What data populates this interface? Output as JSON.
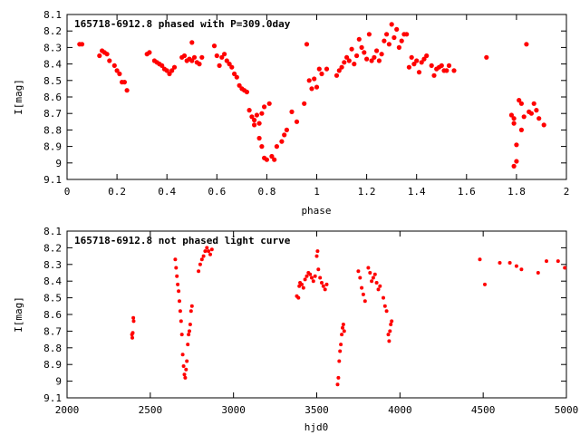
{
  "chart_data": [
    {
      "type": "scatter",
      "title": "165718-6912.8 phased with P=309.0day",
      "xlabel": "phase",
      "ylabel": "I[mag]",
      "xlim": [
        0,
        2
      ],
      "ylim": [
        9.1,
        8.1
      ],
      "y_inverted": true,
      "xticks": [
        "0",
        "0.2",
        "0.4",
        "0.6",
        "0.8",
        "1",
        "1.2",
        "1.4",
        "1.6",
        "1.8",
        "2"
      ],
      "yticks": [
        "8.1",
        "8.2",
        "8.3",
        "8.4",
        "8.5",
        "8.6",
        "8.7",
        "8.8",
        "8.9",
        "9",
        "9.1"
      ],
      "xtick_values": [
        0,
        0.2,
        0.4,
        0.6,
        0.8,
        1.0,
        1.2,
        1.4,
        1.6,
        1.8,
        2.0
      ],
      "ytick_values": [
        8.1,
        8.2,
        8.3,
        8.4,
        8.5,
        8.6,
        8.7,
        8.8,
        8.9,
        9.0,
        9.1
      ],
      "marker_color": "#ff0000",
      "grid": false,
      "points": [
        [
          0.05,
          8.28
        ],
        [
          0.06,
          8.28
        ],
        [
          0.13,
          8.35
        ],
        [
          0.14,
          8.32
        ],
        [
          0.15,
          8.33
        ],
        [
          0.16,
          8.34
        ],
        [
          0.17,
          8.38
        ],
        [
          0.19,
          8.41
        ],
        [
          0.2,
          8.44
        ],
        [
          0.21,
          8.46
        ],
        [
          0.22,
          8.51
        ],
        [
          0.23,
          8.51
        ],
        [
          0.24,
          8.56
        ],
        [
          0.32,
          8.34
        ],
        [
          0.33,
          8.33
        ],
        [
          0.35,
          8.38
        ],
        [
          0.36,
          8.39
        ],
        [
          0.37,
          8.4
        ],
        [
          0.38,
          8.41
        ],
        [
          0.39,
          8.43
        ],
        [
          0.4,
          8.44
        ],
        [
          0.41,
          8.46
        ],
        [
          0.42,
          8.44
        ],
        [
          0.43,
          8.42
        ],
        [
          0.46,
          8.36
        ],
        [
          0.47,
          8.35
        ],
        [
          0.48,
          8.38
        ],
        [
          0.49,
          8.37
        ],
        [
          0.5,
          8.27
        ],
        [
          0.5,
          8.38
        ],
        [
          0.51,
          8.36
        ],
        [
          0.52,
          8.39
        ],
        [
          0.53,
          8.4
        ],
        [
          0.54,
          8.36
        ],
        [
          0.59,
          8.29
        ],
        [
          0.6,
          8.35
        ],
        [
          0.61,
          8.41
        ],
        [
          0.62,
          8.36
        ],
        [
          0.63,
          8.34
        ],
        [
          0.64,
          8.38
        ],
        [
          0.65,
          8.4
        ],
        [
          0.66,
          8.42
        ],
        [
          0.67,
          8.46
        ],
        [
          0.68,
          8.48
        ],
        [
          0.69,
          8.53
        ],
        [
          0.7,
          8.55
        ],
        [
          0.71,
          8.56
        ],
        [
          0.72,
          8.57
        ],
        [
          0.73,
          8.68
        ],
        [
          0.74,
          8.72
        ],
        [
          0.75,
          8.74
        ],
        [
          0.76,
          8.71
        ],
        [
          0.77,
          8.85
        ],
        [
          0.78,
          8.9
        ],
        [
          0.79,
          8.97
        ],
        [
          0.8,
          8.98
        ],
        [
          0.82,
          8.96
        ],
        [
          0.83,
          8.98
        ],
        [
          0.75,
          8.77
        ],
        [
          0.77,
          8.76
        ],
        [
          0.78,
          8.7
        ],
        [
          0.79,
          8.66
        ],
        [
          0.81,
          8.64
        ],
        [
          0.84,
          8.9
        ],
        [
          0.86,
          8.87
        ],
        [
          0.87,
          8.83
        ],
        [
          0.88,
          8.8
        ],
        [
          0.9,
          8.69
        ],
        [
          0.92,
          8.75
        ],
        [
          0.95,
          8.64
        ],
        [
          0.96,
          8.28
        ],
        [
          0.97,
          8.5
        ],
        [
          0.98,
          8.55
        ],
        [
          0.99,
          8.49
        ],
        [
          1.0,
          8.54
        ],
        [
          1.01,
          8.43
        ],
        [
          1.02,
          8.46
        ],
        [
          1.04,
          8.43
        ],
        [
          1.08,
          8.47
        ],
        [
          1.09,
          8.44
        ],
        [
          1.1,
          8.42
        ],
        [
          1.11,
          8.39
        ],
        [
          1.12,
          8.36
        ],
        [
          1.13,
          8.38
        ],
        [
          1.14,
          8.31
        ],
        [
          1.15,
          8.4
        ],
        [
          1.16,
          8.35
        ],
        [
          1.17,
          8.25
        ],
        [
          1.18,
          8.3
        ],
        [
          1.19,
          8.33
        ],
        [
          1.2,
          8.37
        ],
        [
          1.21,
          8.22
        ],
        [
          1.22,
          8.38
        ],
        [
          1.23,
          8.36
        ],
        [
          1.24,
          8.32
        ],
        [
          1.25,
          8.38
        ],
        [
          1.26,
          8.34
        ],
        [
          1.27,
          8.26
        ],
        [
          1.28,
          8.22
        ],
        [
          1.29,
          8.28
        ],
        [
          1.3,
          8.16
        ],
        [
          1.31,
          8.24
        ],
        [
          1.32,
          8.19
        ],
        [
          1.33,
          8.3
        ],
        [
          1.34,
          8.26
        ],
        [
          1.35,
          8.22
        ],
        [
          1.36,
          8.22
        ],
        [
          1.37,
          8.42
        ],
        [
          1.38,
          8.36
        ],
        [
          1.39,
          8.4
        ],
        [
          1.4,
          8.38
        ],
        [
          1.41,
          8.45
        ],
        [
          1.42,
          8.39
        ],
        [
          1.43,
          8.37
        ],
        [
          1.44,
          8.35
        ],
        [
          1.46,
          8.41
        ],
        [
          1.47,
          8.47
        ],
        [
          1.48,
          8.43
        ],
        [
          1.49,
          8.42
        ],
        [
          1.5,
          8.41
        ],
        [
          1.51,
          8.44
        ],
        [
          1.52,
          8.44
        ],
        [
          1.53,
          8.41
        ],
        [
          1.55,
          8.44
        ],
        [
          1.68,
          8.36
        ],
        [
          1.78,
          8.71
        ],
        [
          1.79,
          8.73
        ],
        [
          1.79,
          8.76
        ],
        [
          1.79,
          9.02
        ],
        [
          1.8,
          8.99
        ],
        [
          1.8,
          8.89
        ],
        [
          1.81,
          8.62
        ],
        [
          1.82,
          8.64
        ],
        [
          1.82,
          8.8
        ],
        [
          1.83,
          8.72
        ],
        [
          1.84,
          8.28
        ],
        [
          1.85,
          8.69
        ],
        [
          1.86,
          8.7
        ],
        [
          1.87,
          8.64
        ],
        [
          1.88,
          8.68
        ],
        [
          1.89,
          8.73
        ],
        [
          1.91,
          8.77
        ]
      ]
    },
    {
      "type": "scatter",
      "title": "165718-6912.8 not phased light curve",
      "xlabel": "hjd0",
      "ylabel": "I[mag]",
      "xlim": [
        2000,
        5000
      ],
      "ylim": [
        9.1,
        8.1
      ],
      "y_inverted": true,
      "xticks": [
        "2000",
        "2500",
        "3000",
        "3500",
        "4000",
        "4500",
        "5000"
      ],
      "yticks": [
        "8.1",
        "8.2",
        "8.3",
        "8.4",
        "8.5",
        "8.6",
        "8.7",
        "8.8",
        "8.9",
        "9",
        "9.1"
      ],
      "xtick_values": [
        2000,
        2500,
        3000,
        3500,
        4000,
        4500,
        5000
      ],
      "ytick_values": [
        8.1,
        8.2,
        8.3,
        8.4,
        8.5,
        8.6,
        8.7,
        8.8,
        8.9,
        9.0,
        9.1
      ],
      "marker_color": "#ff0000",
      "grid": false,
      "points": [
        [
          2390,
          8.72
        ],
        [
          2392,
          8.74
        ],
        [
          2395,
          8.71
        ],
        [
          2398,
          8.62
        ],
        [
          2400,
          8.64
        ],
        [
          2650,
          8.27
        ],
        [
          2655,
          8.32
        ],
        [
          2660,
          8.37
        ],
        [
          2665,
          8.42
        ],
        [
          2670,
          8.46
        ],
        [
          2675,
          8.52
        ],
        [
          2680,
          8.58
        ],
        [
          2685,
          8.64
        ],
        [
          2690,
          8.72
        ],
        [
          2695,
          8.84
        ],
        [
          2700,
          8.91
        ],
        [
          2705,
          8.96
        ],
        [
          2710,
          8.98
        ],
        [
          2715,
          8.93
        ],
        [
          2720,
          8.88
        ],
        [
          2725,
          8.78
        ],
        [
          2730,
          8.72
        ],
        [
          2735,
          8.7
        ],
        [
          2740,
          8.66
        ],
        [
          2745,
          8.58
        ],
        [
          2750,
          8.55
        ],
        [
          2790,
          8.34
        ],
        [
          2800,
          8.3
        ],
        [
          2810,
          8.27
        ],
        [
          2820,
          8.25
        ],
        [
          2830,
          8.22
        ],
        [
          2840,
          8.2
        ],
        [
          2850,
          8.22
        ],
        [
          2860,
          8.24
        ],
        [
          2870,
          8.21
        ],
        [
          3380,
          8.49
        ],
        [
          3390,
          8.5
        ],
        [
          3395,
          8.43
        ],
        [
          3400,
          8.41
        ],
        [
          3410,
          8.42
        ],
        [
          3420,
          8.44
        ],
        [
          3430,
          8.39
        ],
        [
          3440,
          8.37
        ],
        [
          3450,
          8.35
        ],
        [
          3460,
          8.36
        ],
        [
          3470,
          8.38
        ],
        [
          3480,
          8.4
        ],
        [
          3490,
          8.37
        ],
        [
          3500,
          8.25
        ],
        [
          3505,
          8.22
        ],
        [
          3510,
          8.33
        ],
        [
          3520,
          8.38
        ],
        [
          3530,
          8.41
        ],
        [
          3540,
          8.43
        ],
        [
          3550,
          8.45
        ],
        [
          3560,
          8.42
        ],
        [
          3625,
          9.02
        ],
        [
          3630,
          8.98
        ],
        [
          3635,
          8.88
        ],
        [
          3640,
          8.82
        ],
        [
          3645,
          8.78
        ],
        [
          3650,
          8.72
        ],
        [
          3655,
          8.68
        ],
        [
          3660,
          8.66
        ],
        [
          3665,
          8.7
        ],
        [
          3750,
          8.34
        ],
        [
          3760,
          8.38
        ],
        [
          3770,
          8.44
        ],
        [
          3780,
          8.48
        ],
        [
          3790,
          8.52
        ],
        [
          3810,
          8.32
        ],
        [
          3820,
          8.35
        ],
        [
          3830,
          8.4
        ],
        [
          3840,
          8.38
        ],
        [
          3850,
          8.36
        ],
        [
          3860,
          8.41
        ],
        [
          3870,
          8.45
        ],
        [
          3880,
          8.43
        ],
        [
          3900,
          8.5
        ],
        [
          3910,
          8.55
        ],
        [
          3920,
          8.58
        ],
        [
          3930,
          8.72
        ],
        [
          3935,
          8.76
        ],
        [
          3940,
          8.7
        ],
        [
          3945,
          8.66
        ],
        [
          3950,
          8.64
        ],
        [
          4480,
          8.27
        ],
        [
          4510,
          8.42
        ],
        [
          4600,
          8.29
        ],
        [
          4660,
          8.29
        ],
        [
          4700,
          8.31
        ],
        [
          4730,
          8.33
        ],
        [
          4830,
          8.35
        ],
        [
          4880,
          8.28
        ],
        [
          4950,
          8.28
        ],
        [
          4990,
          8.32
        ]
      ]
    }
  ]
}
